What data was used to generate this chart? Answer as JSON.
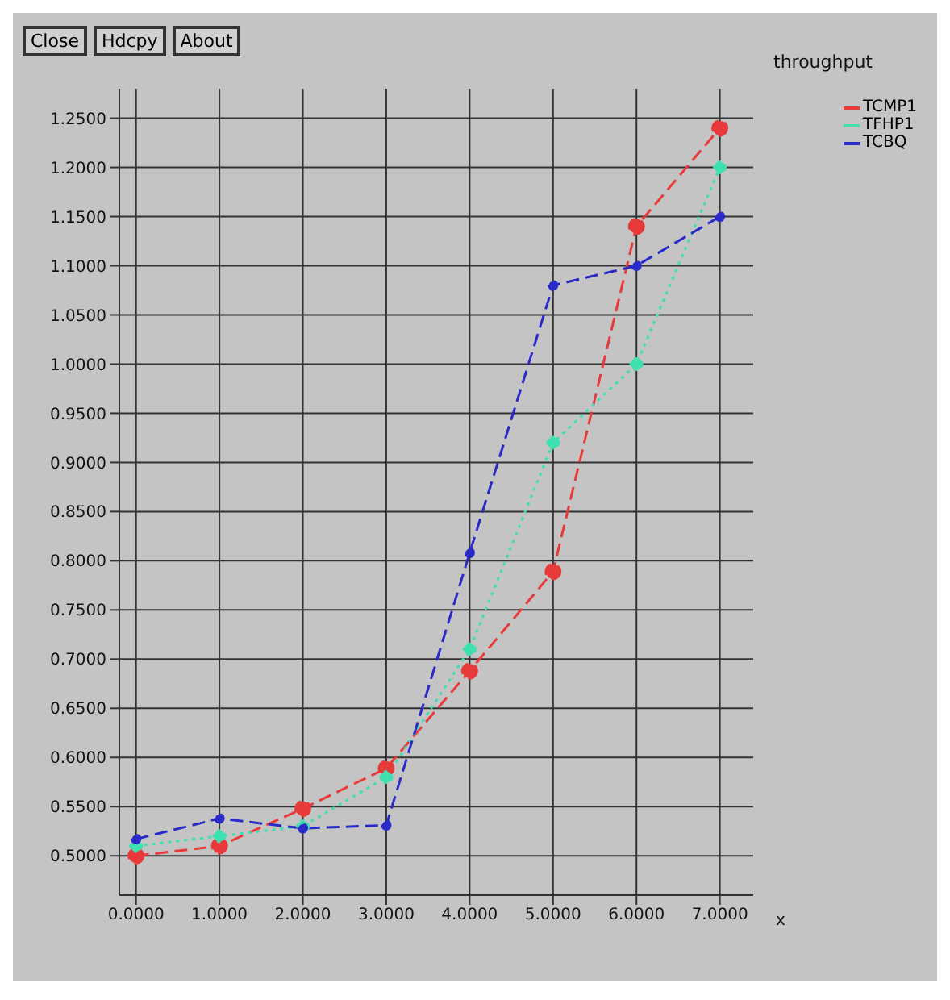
{
  "chart_data": {
    "type": "line",
    "ylabel": "throughput",
    "xlabel": "x",
    "annotations": [
      "Close",
      "Hdcpy",
      "About"
    ],
    "x": [
      0,
      1,
      2,
      3,
      4,
      5,
      6,
      7
    ],
    "series": [
      {
        "name": "TCMP1",
        "color": "#e83a3a",
        "line_style": "dashed",
        "values": [
          0.5,
          0.51,
          0.548,
          0.589,
          0.688,
          0.789,
          1.14,
          1.24
        ]
      },
      {
        "name": "TFHP1",
        "color": "#3ee0b0",
        "line_style": "dotted",
        "values": [
          0.51,
          0.52,
          0.53,
          0.58,
          0.71,
          0.92,
          1.0,
          1.2
        ]
      },
      {
        "name": "TCBQ",
        "color": "#2a2ac8",
        "line_style": "dashed",
        "values": [
          0.517,
          0.538,
          0.528,
          0.531,
          0.808,
          1.08,
          1.1,
          1.15
        ]
      }
    ],
    "xlim": [
      -0.2,
      7.4
    ],
    "xticks": [
      {
        "value": 0,
        "label": "0.0000"
      },
      {
        "value": 1,
        "label": "1.0000"
      },
      {
        "value": 2,
        "label": "2.0000"
      },
      {
        "value": 3,
        "label": "3.0000"
      },
      {
        "value": 4,
        "label": "4.0000"
      },
      {
        "value": 5,
        "label": "5.0000"
      },
      {
        "value": 6,
        "label": "6.0000"
      },
      {
        "value": 7,
        "label": "7.0000"
      }
    ],
    "ylim": [
      0.46,
      1.28
    ],
    "yticks": [
      {
        "value": 0.5,
        "label": "0.5000"
      },
      {
        "value": 0.55,
        "label": "0.5500"
      },
      {
        "value": 0.6,
        "label": "0.6000"
      },
      {
        "value": 0.65,
        "label": "0.6500"
      },
      {
        "value": 0.7,
        "label": "0.7000"
      },
      {
        "value": 0.75,
        "label": "0.7500"
      },
      {
        "value": 0.8,
        "label": "0.8000"
      },
      {
        "value": 0.85,
        "label": "0.8500"
      },
      {
        "value": 0.9,
        "label": "0.9000"
      },
      {
        "value": 0.95,
        "label": "0.9500"
      },
      {
        "value": 1.0,
        "label": "1.0000"
      },
      {
        "value": 1.05,
        "label": "1.0500"
      },
      {
        "value": 1.1,
        "label": "1.1000"
      },
      {
        "value": 1.15,
        "label": "1.1500"
      },
      {
        "value": 1.2,
        "label": "1.2000"
      },
      {
        "value": 1.25,
        "label": "1.2500"
      }
    ],
    "grid": true,
    "legend": "top right",
    "marker": "circle"
  }
}
